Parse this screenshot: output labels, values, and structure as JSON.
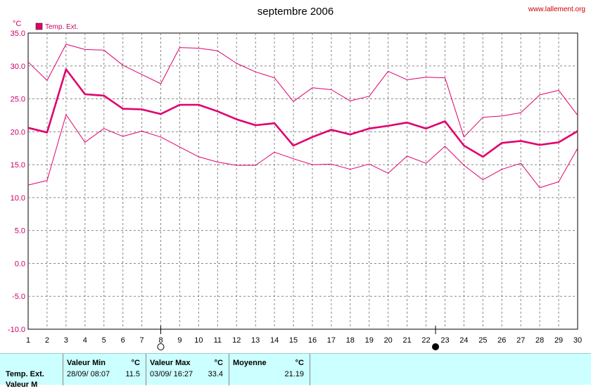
{
  "header": {
    "title": "septembre 2006",
    "source": "www.lallement.org",
    "unit": "°C",
    "legend_label": "Temp. Ext."
  },
  "colors": {
    "series": "#e0006e",
    "grid": "#888888",
    "axis_text": "#cc0066",
    "table_bg": "#ccffff"
  },
  "chart_data": {
    "type": "line",
    "title": "septembre 2006",
    "ylabel": "°C",
    "ylim": [
      -10,
      35
    ],
    "yticks": [
      "35.0",
      "30.0",
      "25.0",
      "20.0",
      "15.0",
      "10.0",
      "5.0",
      "0.0",
      "-5.0",
      "-10.0"
    ],
    "yticks_values": [
      35,
      30,
      25,
      20,
      15,
      10,
      5,
      0,
      -5,
      -10
    ],
    "xlim": [
      1,
      30
    ],
    "x": [
      1,
      2,
      3,
      4,
      5,
      6,
      7,
      8,
      9,
      10,
      11,
      12,
      13,
      14,
      15,
      16,
      17,
      18,
      19,
      20,
      21,
      22,
      23,
      24,
      25,
      26,
      27,
      28,
      29,
      30
    ],
    "grid": true,
    "legend": "top-left",
    "series": [
      {
        "name": "Temp. Ext.",
        "role": "max",
        "values": [
          30.6,
          27.8,
          33.3,
          32.5,
          32.4,
          30.1,
          28.7,
          27.3,
          32.8,
          32.7,
          32.3,
          30.4,
          29.1,
          28.2,
          24.6,
          26.7,
          26.4,
          24.7,
          25.4,
          29.2,
          27.9,
          28.3,
          28.2,
          19.2,
          22.2,
          22.4,
          22.9,
          25.6,
          26.3,
          22.5
        ]
      },
      {
        "name": "",
        "role": "mean",
        "values": [
          20.6,
          19.9,
          29.5,
          25.7,
          25.5,
          23.5,
          23.4,
          22.7,
          24.1,
          24.1,
          23.1,
          21.9,
          21.0,
          21.3,
          17.9,
          19.2,
          20.3,
          19.6,
          20.5,
          20.9,
          21.4,
          20.5,
          21.6,
          17.9,
          16.2,
          18.3,
          18.6,
          18.0,
          18.4,
          20.1
        ]
      },
      {
        "name": "",
        "role": "min",
        "values": [
          11.9,
          12.6,
          22.6,
          18.4,
          20.5,
          19.3,
          20.1,
          19.2,
          17.7,
          16.2,
          15.4,
          14.9,
          14.9,
          16.9,
          15.9,
          15.0,
          15.1,
          14.3,
          15.1,
          13.7,
          16.3,
          15.2,
          17.8,
          14.9,
          12.7,
          14.3,
          15.2,
          11.5,
          12.4,
          17.5
        ]
      }
    ],
    "markers": [
      {
        "day": 8,
        "symbol": "open-circle"
      },
      {
        "day": 22.5,
        "symbol": "filled-circle"
      }
    ]
  },
  "stats": {
    "row_label": "Temp. Ext.",
    "row2_label": "Valeur M",
    "min": {
      "header": "Valeur Min",
      "unit": "°C",
      "date": "28/09/ 08:07",
      "value": "11.5"
    },
    "max": {
      "header": "Valeur Max",
      "unit": "°C",
      "date": "03/09/ 16:27",
      "value": "33.4"
    },
    "mean": {
      "header": "Moyenne",
      "unit": "°C",
      "value": "21.19"
    }
  }
}
